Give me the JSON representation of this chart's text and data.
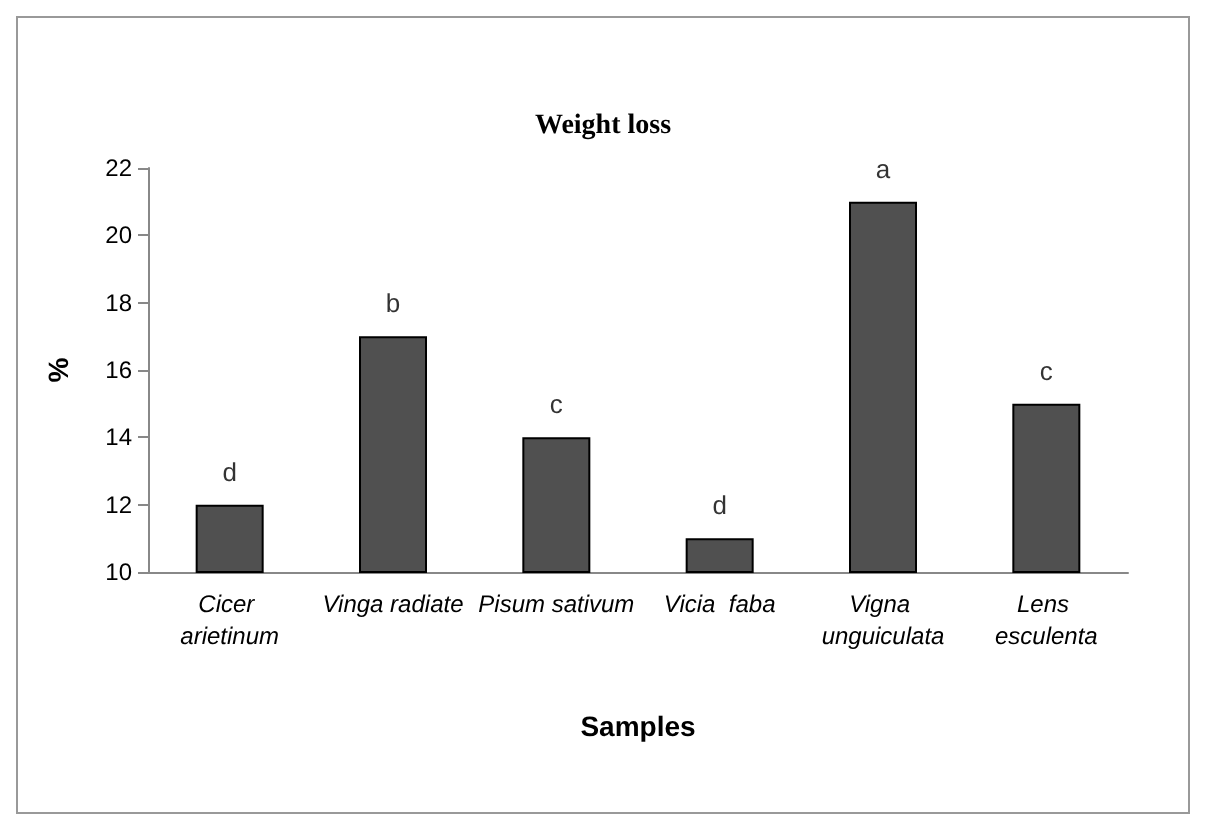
{
  "chart_data": {
    "type": "bar",
    "title": "Weight loss",
    "xlabel": "Samples",
    "ylabel": "%",
    "categories": [
      "Cicer arietinum",
      "Vinga radiate",
      "Pisum sativum",
      "Vicia  faba",
      "Vigna unguiculata",
      "Lens esculenta"
    ],
    "values": [
      12,
      17,
      14,
      11,
      21,
      15
    ],
    "color": "#505050",
    "ylim": [
      10,
      22
    ],
    "yticks": [
      10,
      12,
      14,
      16,
      18,
      20,
      22
    ],
    "grid": false,
    "annotations": [
      {
        "text": "d",
        "x": "Cicer arietinum",
        "y": 12
      },
      {
        "text": "b",
        "x": "Vinga radiate",
        "y": 17
      },
      {
        "text": "c",
        "x": "Pisum sativum",
        "y": 14
      },
      {
        "text": "d",
        "x": "Vicia  faba",
        "y": 11
      },
      {
        "text": "a",
        "x": "Vigna unguiculata",
        "y": 21
      },
      {
        "text": "c",
        "x": "Lens esculenta",
        "y": 15
      }
    ]
  }
}
